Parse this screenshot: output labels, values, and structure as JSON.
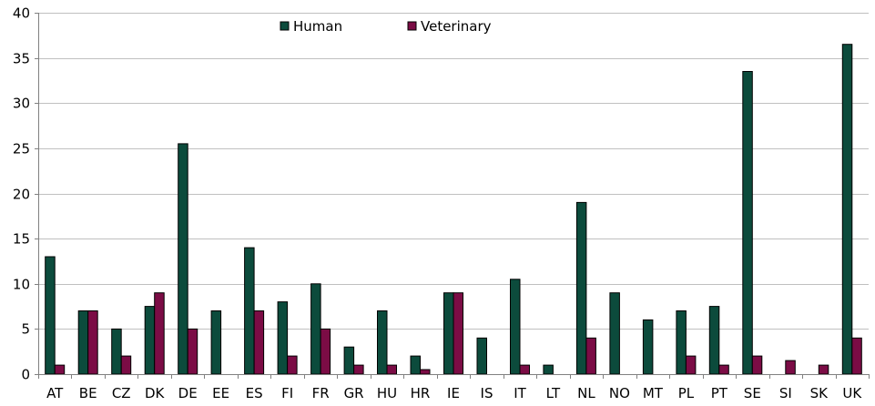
{
  "chart_data": {
    "type": "bar",
    "categories": [
      "AT",
      "BE",
      "CZ",
      "DK",
      "DE",
      "EE",
      "ES",
      "FI",
      "FR",
      "GR",
      "HU",
      "HR",
      "IE",
      "IS",
      "IT",
      "LT",
      "NL",
      "NO",
      "MT",
      "PL",
      "PT",
      "SE",
      "SI",
      "SK",
      "UK"
    ],
    "series": [
      {
        "name": "Human",
        "color": "#0c4b3c",
        "values": [
          13,
          7,
          5,
          7.5,
          25.5,
          7,
          14,
          8,
          10,
          3,
          7,
          2,
          9,
          4,
          10.5,
          1,
          19,
          9,
          6,
          7,
          7.5,
          33.5,
          0,
          0,
          36.5
        ]
      },
      {
        "name": "Veterinary",
        "color": "#7b0c45",
        "values": [
          1,
          7,
          2,
          9,
          5,
          0,
          7,
          2,
          5,
          1,
          1,
          0.5,
          9,
          0,
          1,
          0,
          4,
          0,
          0,
          2,
          1,
          2,
          1.5,
          1,
          4
        ]
      }
    ],
    "ylim": [
      0,
      40
    ],
    "yticks": [
      0,
      5,
      10,
      15,
      20,
      25,
      30,
      35,
      40
    ],
    "grid": true,
    "legend": "top-center"
  }
}
